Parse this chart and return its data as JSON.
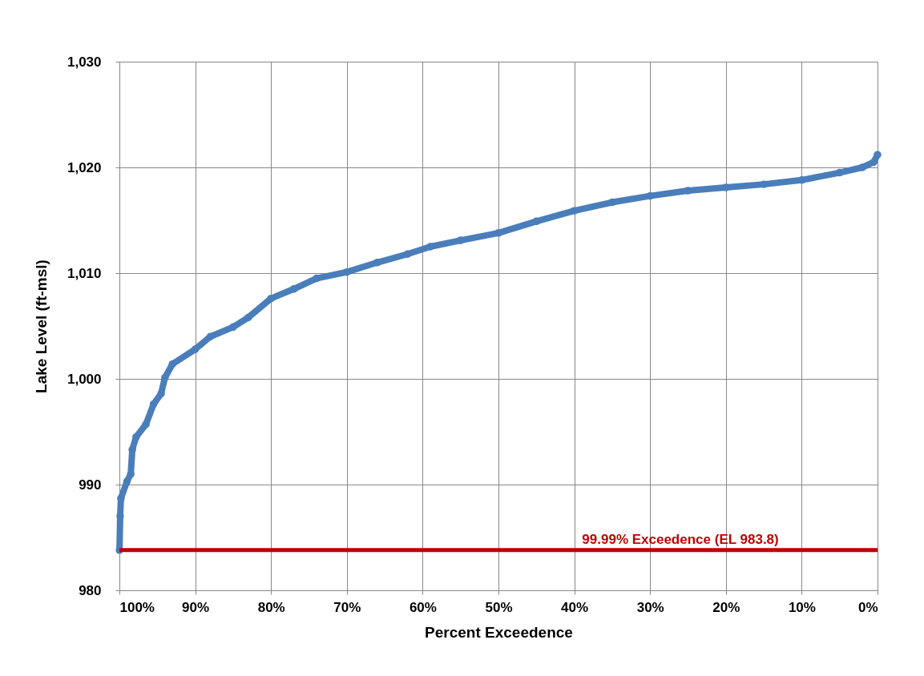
{
  "chart_data": {
    "type": "line",
    "xlabel": "Percent Exceedence",
    "ylabel": "Lake Level (ft-msl)",
    "series": [
      {
        "color": "#4a7ebb",
        "x": [
          99.99,
          99.9,
          99.8,
          99,
          98.5,
          98.3,
          97.8,
          96.5,
          95.5,
          94.5,
          94,
          93,
          90,
          88,
          85,
          83,
          80,
          77,
          74,
          70,
          66,
          62,
          59,
          55,
          50,
          45,
          40,
          35,
          30,
          25,
          20,
          15,
          10,
          5,
          2,
          0.5,
          0
        ],
        "values": [
          983.8,
          987,
          988.7,
          990.3,
          991,
          993.3,
          994.5,
          995.7,
          997.6,
          998.6,
          1000.1,
          1001.4,
          1002.8,
          1004,
          1004.9,
          1005.8,
          1007.6,
          1008.5,
          1009.5,
          1010.1,
          1011,
          1011.8,
          1012.5,
          1013.1,
          1013.8,
          1014.9,
          1015.9,
          1016.7,
          1017.3,
          1017.8,
          1018.1,
          1018.4,
          1018.8,
          1019.5,
          1020,
          1020.5,
          1021.2
        ]
      }
    ],
    "xlim": [
      100,
      0
    ],
    "xticks": [
      {
        "value": 100,
        "label": "100%"
      },
      {
        "value": 90,
        "label": "90%"
      },
      {
        "value": 80,
        "label": "80%"
      },
      {
        "value": 70,
        "label": "70%"
      },
      {
        "value": 60,
        "label": "60%"
      },
      {
        "value": 50,
        "label": "50%"
      },
      {
        "value": 40,
        "label": "40%"
      },
      {
        "value": 30,
        "label": "30%"
      },
      {
        "value": 20,
        "label": "20%"
      },
      {
        "value": 10,
        "label": "10%"
      },
      {
        "value": 0,
        "label": "0%"
      }
    ],
    "ylim": [
      980,
      1030
    ],
    "yticks": [
      {
        "value": 980,
        "label": "980"
      },
      {
        "value": 990,
        "label": "990"
      },
      {
        "value": 1000,
        "label": "1,000"
      },
      {
        "value": 1010,
        "label": "1,010"
      },
      {
        "value": 1020,
        "label": "1,020"
      },
      {
        "value": 1030,
        "label": "1,030"
      }
    ],
    "ref_lines": [
      {
        "axis": "y",
        "value": 983.8,
        "label": "99.99% Exceedence (EL 983.8)",
        "color": "#c00000"
      }
    ],
    "grid": true,
    "marker": "circle",
    "line_style": "solid"
  }
}
